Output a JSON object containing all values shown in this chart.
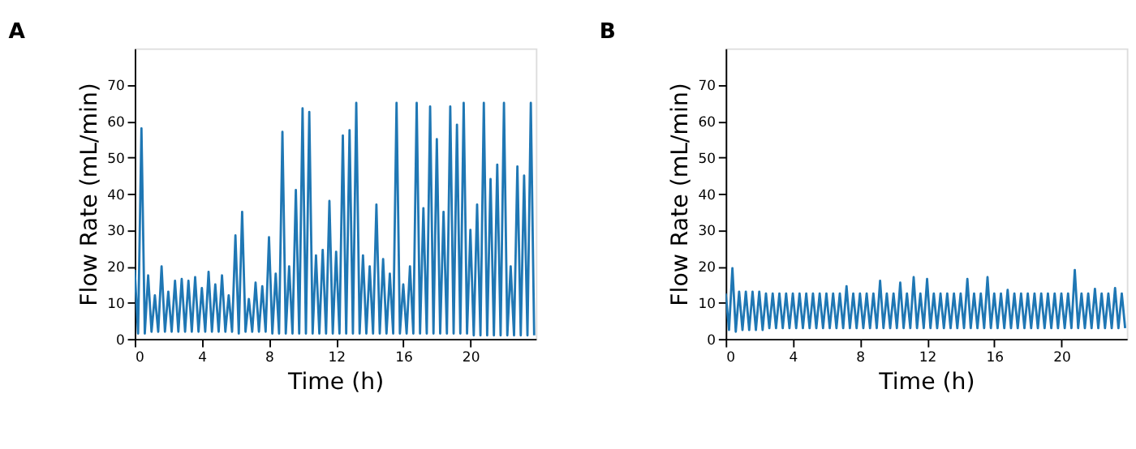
{
  "chart_data": [
    {
      "type": "line",
      "title": "A",
      "xlabel": "Time (h)",
      "ylabel": "Flow Rate (mL/min)",
      "xlim": [
        0,
        23.9
      ],
      "ylim": [
        0,
        80
      ],
      "xticks": [
        0,
        4,
        8,
        12,
        16,
        20
      ],
      "yticks": [
        0,
        10,
        20,
        30,
        40,
        50,
        60,
        70
      ],
      "x": [
        0,
        0.2,
        0.4,
        0.6,
        0.8,
        1,
        1.2,
        1.4,
        1.6,
        1.8,
        2,
        2.2,
        2.4,
        2.6,
        2.8,
        3,
        3.2,
        3.4,
        3.6,
        3.8,
        4,
        4.2,
        4.4,
        4.6,
        4.8,
        5,
        5.2,
        5.4,
        5.6,
        5.8,
        6,
        6.2,
        6.4,
        6.6,
        6.8,
        7,
        7.2,
        7.4,
        7.6,
        7.8,
        8,
        8.2,
        8.4,
        8.6,
        8.8,
        9,
        9.2,
        9.4,
        9.6,
        9.8,
        10,
        10.2,
        10.4,
        10.6,
        10.8,
        11,
        11.2,
        11.4,
        11.6,
        11.8,
        12,
        12.2,
        12.4,
        12.6,
        12.8,
        13,
        13.2,
        13.4,
        13.6,
        13.8,
        14,
        14.2,
        14.4,
        14.6,
        14.8,
        15,
        15.2,
        15.4,
        15.6,
        15.8,
        16,
        16.2,
        16.4,
        16.6,
        16.8,
        17,
        17.2,
        17.4,
        17.6,
        17.8,
        18,
        18.2,
        18.4,
        18.6,
        18.8,
        19,
        19.2,
        19.4,
        19.6,
        19.8,
        20,
        20.2,
        20.4,
        20.6,
        20.8,
        21,
        21.2,
        21.4,
        21.6,
        21.8,
        22,
        22.2,
        22.4,
        22.6,
        22.8,
        23,
        23.2,
        23.4,
        23.6,
        23.8
      ],
      "series": [
        {
          "color": "#1f77b4",
          "values": [
            19,
            1.5,
            58,
            1.5,
            17.5,
            2,
            12,
            2,
            20,
            2,
            13,
            2,
            16,
            2,
            16.5,
            2,
            16,
            2,
            17,
            2,
            14,
            2,
            18.5,
            2,
            15,
            2,
            17.5,
            2,
            12,
            2,
            28.5,
            1.5,
            35,
            2,
            11,
            2,
            15.5,
            2,
            14.5,
            2,
            28,
            1.5,
            18,
            1.5,
            57,
            1.5,
            20,
            1.5,
            41,
            1.5,
            63.5,
            1.5,
            62.5,
            1.5,
            23,
            1.5,
            24.5,
            1.5,
            38,
            1.5,
            24,
            1.5,
            56,
            1.5,
            57.5,
            1.5,
            65,
            1.5,
            23,
            1.5,
            20,
            1.5,
            37,
            1.5,
            22,
            1.5,
            18,
            1.5,
            65,
            1.5,
            15,
            1.5,
            20,
            1.5,
            65,
            1.5,
            36,
            1.5,
            64,
            1.5,
            55,
            1.5,
            35,
            1.5,
            64,
            1.5,
            59,
            1.5,
            65,
            1.5,
            30,
            1,
            37,
            1,
            65,
            1,
            44,
            1,
            48,
            1,
            65,
            1,
            20,
            1,
            47.5,
            1,
            45,
            1,
            65,
            1
          ]
        }
      ]
    },
    {
      "type": "line",
      "title": "B",
      "xlabel": "Time (h)",
      "ylabel": "Flow Rate (mL/min)",
      "xlim": [
        0,
        23.9
      ],
      "ylim": [
        0,
        80
      ],
      "xticks": [
        0,
        4,
        8,
        12,
        16,
        20
      ],
      "yticks": [
        0,
        10,
        20,
        30,
        40,
        50,
        60,
        70
      ],
      "x": [
        0,
        0.2,
        0.4,
        0.6,
        0.8,
        1,
        1.2,
        1.4,
        1.6,
        1.8,
        2,
        2.2,
        2.4,
        2.6,
        2.8,
        3,
        3.2,
        3.4,
        3.6,
        3.8,
        4,
        4.2,
        4.4,
        4.6,
        4.8,
        5,
        5.2,
        5.4,
        5.6,
        5.8,
        6,
        6.2,
        6.4,
        6.6,
        6.8,
        7,
        7.2,
        7.4,
        7.6,
        7.8,
        8,
        8.2,
        8.4,
        8.6,
        8.8,
        9,
        9.2,
        9.4,
        9.6,
        9.8,
        10,
        10.2,
        10.4,
        10.6,
        10.8,
        11,
        11.2,
        11.4,
        11.6,
        11.8,
        12,
        12.2,
        12.4,
        12.6,
        12.8,
        13,
        13.2,
        13.4,
        13.6,
        13.8,
        14,
        14.2,
        14.4,
        14.6,
        14.8,
        15,
        15.2,
        15.4,
        15.6,
        15.8,
        16,
        16.2,
        16.4,
        16.6,
        16.8,
        17,
        17.2,
        17.4,
        17.6,
        17.8,
        18,
        18.2,
        18.4,
        18.6,
        18.8,
        19,
        19.2,
        19.4,
        19.6,
        19.8,
        20,
        20.2,
        20.4,
        20.6,
        20.8,
        21,
        21.2,
        21.4,
        21.6,
        21.8,
        22,
        22.2,
        22.4,
        22.6,
        22.8,
        23,
        23.2,
        23.4,
        23.6,
        23.8
      ],
      "series": [
        {
          "color": "#1f77b4",
          "values": [
            12.5,
            2.5,
            19.5,
            2,
            13,
            2.5,
            13,
            2.5,
            13,
            2.5,
            13,
            2.5,
            12.5,
            3,
            12.5,
            3,
            12.5,
            3,
            12.5,
            3,
            12.5,
            3,
            12.5,
            3,
            12.5,
            3,
            12.5,
            3,
            12.5,
            3,
            12.5,
            3,
            12.5,
            3,
            12.5,
            3,
            14.5,
            3,
            12.5,
            3,
            12.5,
            3,
            12.5,
            3,
            12.5,
            3,
            16,
            3,
            12.5,
            3,
            12.5,
            3,
            15.5,
            3,
            12.5,
            3,
            17,
            3,
            12.5,
            3,
            16.5,
            3,
            12.5,
            3,
            12.5,
            3,
            12.5,
            3,
            12.5,
            3,
            12.5,
            3,
            16.5,
            3,
            12.5,
            3,
            12.5,
            3,
            17,
            3,
            12.5,
            3,
            12.5,
            3,
            13.5,
            3,
            12.5,
            3,
            12.5,
            3,
            12.5,
            3,
            12.5,
            3,
            12.5,
            3,
            12.5,
            3,
            12.5,
            3,
            12.5,
            3,
            12.5,
            3,
            19,
            3,
            12.5,
            3,
            12.5,
            3,
            13.8,
            3,
            12.5,
            3,
            12.5,
            3,
            14,
            3,
            12.5,
            3
          ]
        }
      ]
    }
  ]
}
